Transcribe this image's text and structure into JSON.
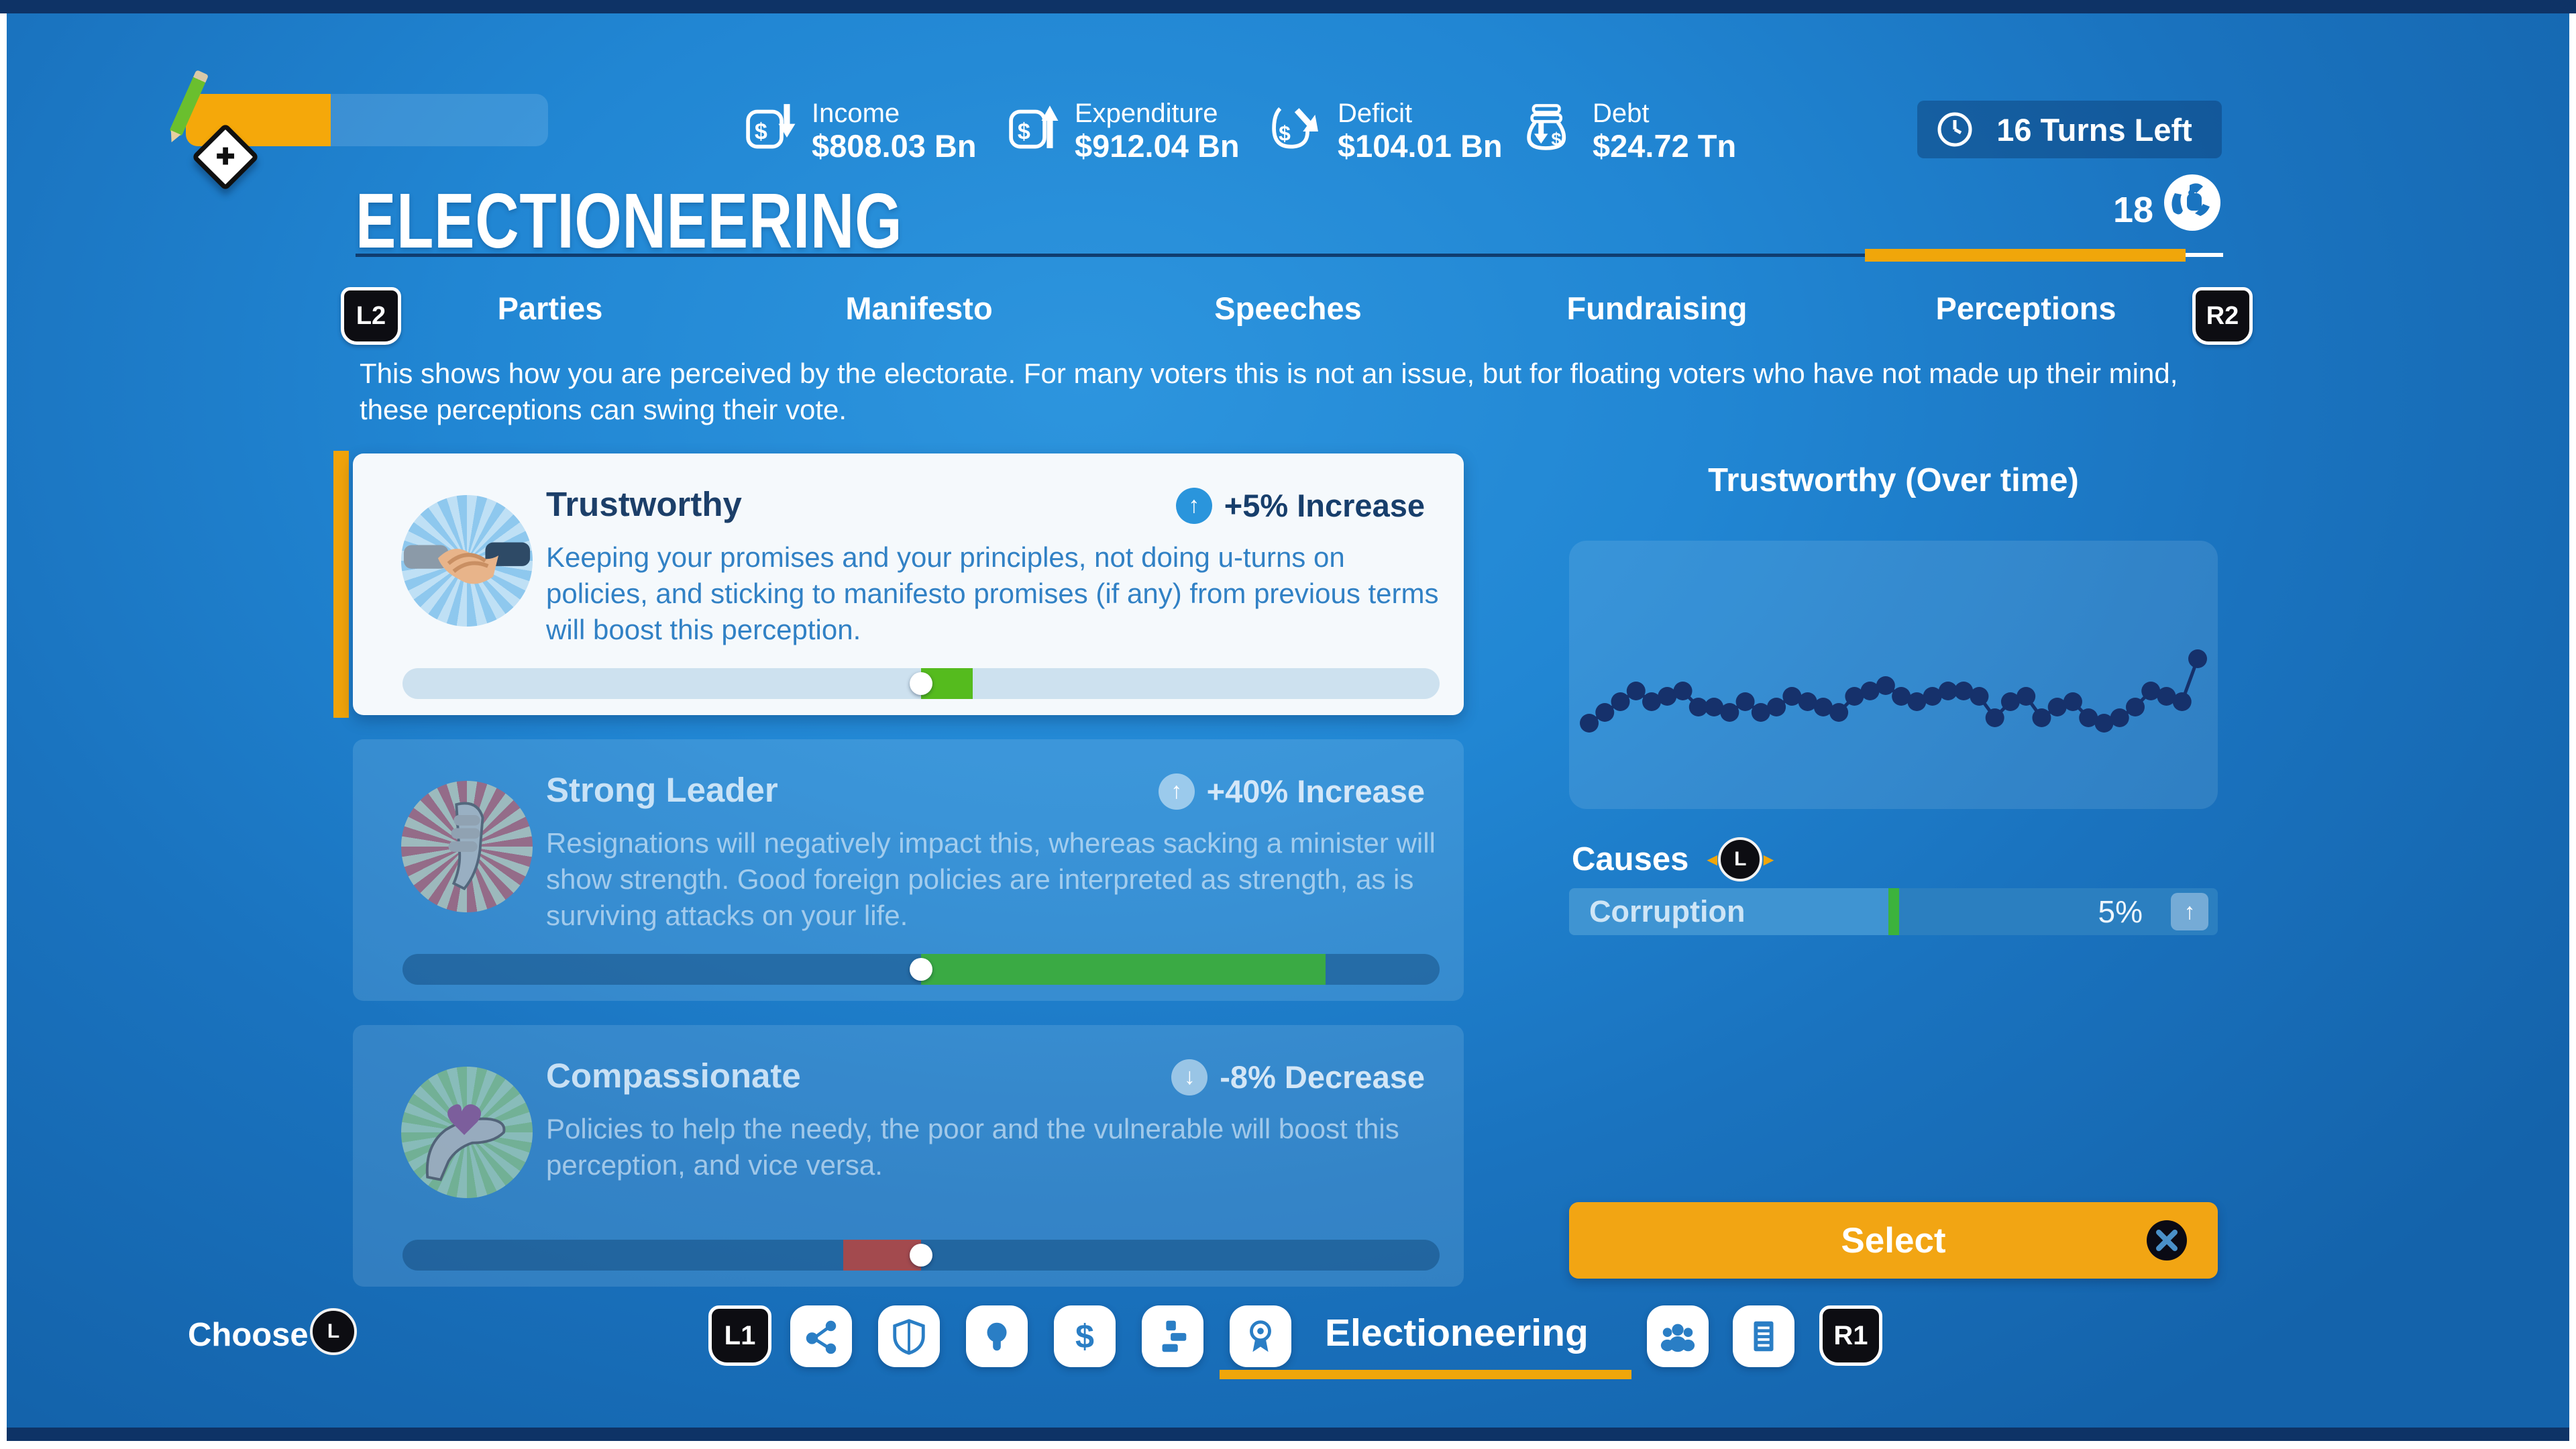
{
  "colors": {
    "background_blue": "#1d7dcb",
    "navy": "#0e3366",
    "accent_orange": "#f0a60a",
    "positive_green": "#55bb1e",
    "muted_green": "#3aaa44",
    "negative_red": "#a34a4e",
    "badge_blue": "#2a95dc",
    "card_white": "#f5f9fc"
  },
  "top": {
    "progress": {
      "fill_pct": 40
    },
    "stats": [
      {
        "icon": "income-icon",
        "label": "Income",
        "value": "$808.03 Bn"
      },
      {
        "icon": "expenditure-icon",
        "label": "Expenditure",
        "value": "$912.04 Bn"
      },
      {
        "icon": "deficit-icon",
        "label": "Deficit",
        "value": "$104.01 Bn"
      },
      {
        "icon": "debt-icon",
        "label": "Debt",
        "value": "$24.72 Tn"
      }
    ],
    "turns_left": "16 Turns Left"
  },
  "header": {
    "title": "ELECTIONEERING",
    "political_capital_value": "18"
  },
  "tabs": {
    "left_bumper": "L2",
    "right_bumper": "R2",
    "items": [
      "Parties",
      "Manifesto",
      "Speeches",
      "Fundraising",
      "Perceptions"
    ],
    "active": "Perceptions"
  },
  "description": "This shows how you are perceived by the electorate. For many voters this is not an issue, but for floating voters who have not made up their mind, these perceptions can swing their vote.",
  "perceptions": [
    {
      "name": "Trustworthy",
      "change": "+5% Increase",
      "arrow": "↑",
      "selected": true,
      "description": "Keeping your promises and your principles, not doing u-turns on policies, and sticking to manifesto promises (if any) from previous terms will boost this perception.",
      "bar": {
        "dot_pct": 50,
        "seg_start_pct": 50,
        "seg_end_pct": 55,
        "seg_color": "green-bright"
      }
    },
    {
      "name": "Strong Leader",
      "change": "+40% Increase",
      "arrow": "↑",
      "selected": false,
      "description": "Resignations will negatively impact this, whereas sacking a minister will show strength. Good foreign policies are interpreted as strength, as is surviving attacks on your life.",
      "bar": {
        "dot_pct": 50,
        "seg_start_pct": 50,
        "seg_end_pct": 89,
        "seg_color": "green"
      }
    },
    {
      "name": "Compassionate",
      "change": "-8% Decrease",
      "arrow": "↓",
      "selected": false,
      "description": "Policies to help the needy, the poor and the vulnerable will boost this perception, and vice versa.",
      "bar": {
        "dot_pct": 50,
        "seg_start_pct": 42.5,
        "seg_end_pct": 50,
        "seg_color": "red"
      }
    }
  ],
  "chart_data": {
    "type": "scatter",
    "title": "Trustworthy (Over time)",
    "xlabel": "",
    "ylabel": "",
    "legend": false,
    "grid": false,
    "x_unit": "turns",
    "values": [
      38,
      39,
      40,
      41,
      40,
      40.5,
      41,
      39.5,
      39.5,
      39,
      40,
      39,
      39.5,
      40.5,
      40,
      39.5,
      39,
      40.5,
      41,
      41.5,
      40.5,
      40,
      40.5,
      41,
      41,
      40.5,
      38.5,
      40,
      40.5,
      38.5,
      39.5,
      40,
      38.5,
      38,
      38.5,
      39.5,
      41,
      40.5,
      40,
      44
    ],
    "ylim": [
      30,
      55
    ],
    "point_color": "#16316b"
  },
  "causes": {
    "label": "Causes",
    "stick": "L",
    "items": [
      {
        "name": "Corruption",
        "value": "5%",
        "fill_pct": 50,
        "tick_color": "#3cb33c"
      }
    ]
  },
  "select_button": {
    "label": "Select",
    "ps_button": "X"
  },
  "bottom": {
    "choose_label": "Choose",
    "stick": "L",
    "left_bumper": "L1",
    "right_bumper": "R1",
    "active_label": "Electioneering",
    "nav_icons": [
      "share-icon",
      "shield-icon",
      "lightbulb-icon",
      "dollar-icon",
      "layers-icon",
      "rosette-icon"
    ],
    "right_icons": [
      "people-icon",
      "document-icon"
    ]
  }
}
